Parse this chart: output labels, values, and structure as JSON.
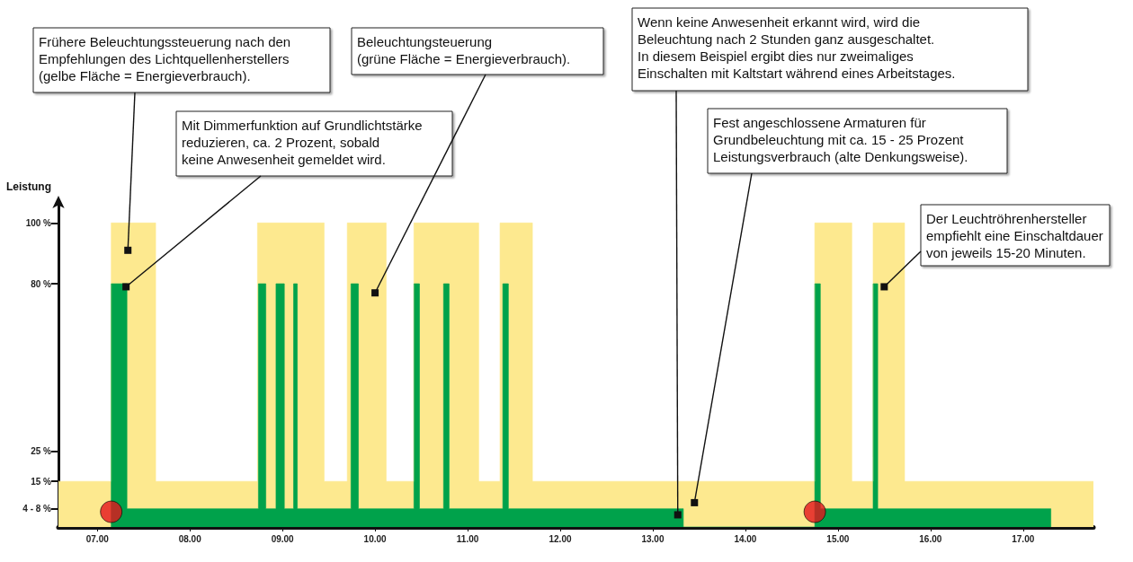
{
  "chart_data": {
    "type": "area",
    "ylabel": "Leistung",
    "xlim": [
      6.58,
      17.76
    ],
    "xticks": [
      {
        "value": 7,
        "label": "07.00"
      },
      {
        "value": 8,
        "label": "08.00"
      },
      {
        "value": 9,
        "label": "09.00"
      },
      {
        "value": 10,
        "label": "10.00"
      },
      {
        "value": 11,
        "label": "11.00"
      },
      {
        "value": 12,
        "label": "12.00"
      },
      {
        "value": 13,
        "label": "13.00"
      },
      {
        "value": 14,
        "label": "14.00"
      },
      {
        "value": 15,
        "label": "15.00"
      },
      {
        "value": 16,
        "label": "16.00"
      },
      {
        "value": 17,
        "label": "17.00"
      }
    ],
    "ylim": [
      0,
      106
    ],
    "yticks": [
      {
        "value": 6,
        "label": "4 - 8 %"
      },
      {
        "value": 15,
        "label": "15 %"
      },
      {
        "value": 25,
        "label": "25 %"
      },
      {
        "value": 80,
        "label": "80 %"
      },
      {
        "value": 100,
        "label": "100 %"
      }
    ],
    "grid": false,
    "series": [
      {
        "color": "#fde98f",
        "x": [
          6.58,
          7.15,
          7.15,
          7.63,
          7.63,
          8.73,
          8.73,
          9.45,
          9.45,
          9.7,
          9.7,
          10.12,
          10.12,
          10.42,
          10.42,
          11.12,
          11.12,
          11.35,
          11.35,
          11.7,
          11.7,
          14.75,
          14.75,
          15.15,
          15.15,
          15.38,
          15.38,
          15.72,
          15.72,
          17.76
        ],
        "values": [
          15,
          15,
          100,
          100,
          15,
          15,
          100,
          100,
          15,
          15,
          100,
          100,
          15,
          15,
          100,
          100,
          15,
          15,
          100,
          100,
          15,
          15,
          100,
          100,
          15,
          15,
          100,
          100,
          15,
          15
        ]
      },
      {
        "color": "#00a24b",
        "x": [
          7.15,
          7.15,
          7.32,
          7.32,
          8.74,
          8.74,
          8.82,
          8.82,
          8.93,
          8.93,
          9.02,
          9.02,
          9.12,
          9.12,
          9.16,
          9.16,
          9.74,
          9.74,
          9.82,
          9.82,
          10.42,
          10.42,
          10.48,
          10.48,
          10.74,
          10.74,
          10.8,
          10.8,
          11.38,
          11.38,
          11.44,
          11.44,
          13.33,
          13.33,
          14.75,
          14.75,
          14.81,
          14.81,
          15.38,
          15.38,
          15.43,
          15.43,
          17.3,
          17.3
        ],
        "values": [
          0,
          80,
          80,
          6,
          6,
          80,
          80,
          6,
          6,
          80,
          80,
          6,
          6,
          80,
          80,
          6,
          6,
          80,
          80,
          6,
          6,
          80,
          80,
          6,
          6,
          80,
          80,
          6,
          6,
          80,
          80,
          6,
          6,
          0,
          0,
          80,
          80,
          6,
          6,
          80,
          80,
          6,
          6,
          0
        ]
      },
      {
        "type": "scatter",
        "color": "#e3141c",
        "marker": "circle",
        "x": [
          7.15,
          14.75
        ],
        "values": [
          5,
          5
        ]
      }
    ],
    "annotations": [
      {
        "text": "Frühere Beleuchtungssteuerung nach den\nEmpfehlungen des Lichtquellenherstellers\n(gelbe Fläche = Energieverbrauch).",
        "x": 7.33,
        "y": 91
      },
      {
        "text": "Beleuchtungsteuerung\n(grüne Fläche = Energieverbrauch).",
        "x": 10.0,
        "y": 77
      },
      {
        "text": "Mit Dimmerfunktion auf Grundlichtstärke\nreduzieren, ca. 2 Prozent, sobald\nkeine Anwesenheit gemeldet wird.",
        "x": 7.31,
        "y": 79
      },
      {
        "text": "Wenn keine Anwesenheit erkannt wird, wird die\nBeleuchtung nach 2 Stunden ganz ausgeschaltet.\nIn diesem Beispiel ergibt dies nur zweimaliges\nEinschalten mit Kaltstart während eines Arbeitstages.",
        "x": 13.27,
        "y": 4
      },
      {
        "text": "Fest angeschlossene Armaturen für\nGrundbeleuchtung mit ca. 15 - 25 Prozent\nLeistungsverbrauch (alte Denkungsweise).",
        "x": 13.45,
        "y": 8
      },
      {
        "text": "Der Leuchtröhrenhersteller\nempfiehlt eine Einschaltdauer\nvon jeweils 15-20 Minuten.",
        "x": 15.5,
        "y": 79
      }
    ]
  }
}
